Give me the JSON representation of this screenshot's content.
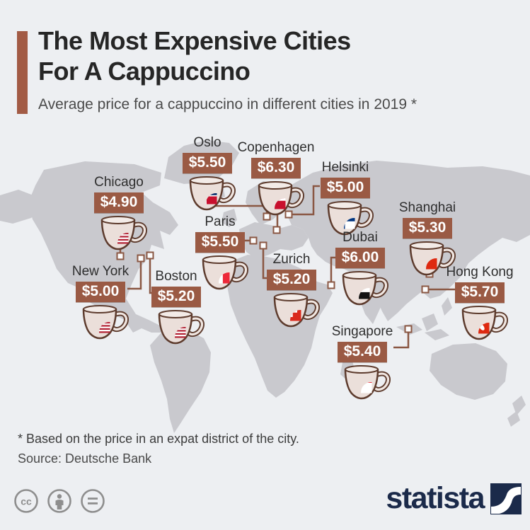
{
  "header": {
    "title_line1": "The Most Expensive Cities",
    "title_line2": "For A Cappuccino",
    "subtitle": "Average price for a cappuccino in different cities in 2019 *"
  },
  "chart_data": {
    "type": "map",
    "title": "The Most Expensive Cities For A Cappuccino",
    "subtitle": "Average price for a cappuccino in different cities in 2019",
    "unit": "USD",
    "year": 2019,
    "points": [
      {
        "city": "Oslo",
        "flag": "norway",
        "price_usd": 5.5,
        "price_label": "$5.50"
      },
      {
        "city": "Copenhagen",
        "flag": "denmark",
        "price_usd": 6.3,
        "price_label": "$6.30"
      },
      {
        "city": "Helsinki",
        "flag": "finland",
        "price_usd": 5.0,
        "price_label": "$5.00"
      },
      {
        "city": "Chicago",
        "flag": "usa",
        "price_usd": 4.9,
        "price_label": "$4.90"
      },
      {
        "city": "Shanghai",
        "flag": "china",
        "price_usd": 5.3,
        "price_label": "$5.30"
      },
      {
        "city": "Paris",
        "flag": "france",
        "price_usd": 5.5,
        "price_label": "$5.50"
      },
      {
        "city": "Dubai",
        "flag": "uae",
        "price_usd": 6.0,
        "price_label": "$6.00"
      },
      {
        "city": "Zurich",
        "flag": "switzerland",
        "price_usd": 5.2,
        "price_label": "$5.20"
      },
      {
        "city": "New York",
        "flag": "usa",
        "price_usd": 5.0,
        "price_label": "$5.00"
      },
      {
        "city": "Boston",
        "flag": "usa",
        "price_usd": 5.2,
        "price_label": "$5.20"
      },
      {
        "city": "Hong Kong",
        "flag": "hongkong",
        "price_usd": 5.7,
        "price_label": "$5.70"
      },
      {
        "city": "Singapore",
        "flag": "singapore",
        "price_usd": 5.4,
        "price_label": "$5.40"
      }
    ]
  },
  "footer": {
    "footnote": "* Based on the price in an expat district of the city.",
    "source": "Source: Deutsche Bank",
    "brand": "statista",
    "license_icons": [
      "cc-icon",
      "attribution-icon",
      "no-derivatives-icon"
    ]
  },
  "colors": {
    "background": "#edeff2",
    "land": "#c9c9ce",
    "accent": "#a25b45",
    "badge": "#9a5a44",
    "badge_text": "#ffffff",
    "connector": "#8a5743",
    "cup_outline": "#5d3b2d",
    "cup_fill": "#ebdfda",
    "title_text": "#262626",
    "subtitle_text": "#4a4a4a",
    "footer_text": "#3c3c3c",
    "brand_navy": "#1b2a4a"
  }
}
